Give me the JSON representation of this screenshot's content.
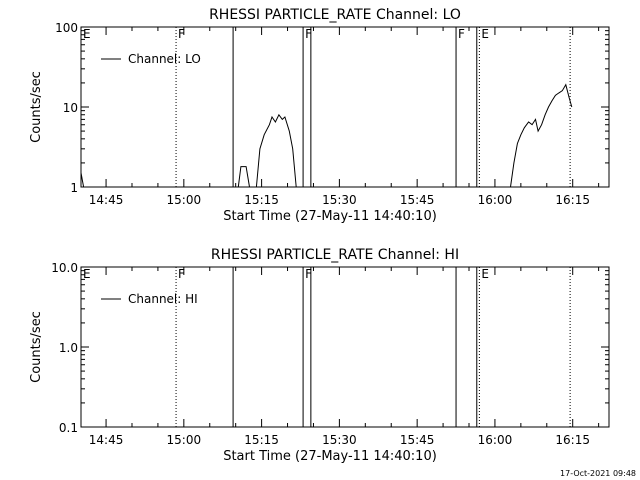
{
  "footer": {
    "timestamp": "17-Oct-2021 09:48"
  },
  "chart_data": [
    {
      "type": "line",
      "title": "RHESSI PARTICLE_RATE Channel: LO",
      "xlabel": "Start Time (27-May-11 14:40:10)",
      "ylabel": "Counts/sec",
      "yscale": "log",
      "ylim": [
        1,
        100
      ],
      "xlim": [
        "14:40:10",
        "16:22"
      ],
      "yticks": [
        "1",
        "10",
        "100"
      ],
      "xticks": [
        "14:45",
        "15:00",
        "15:15",
        "15:30",
        "15:45",
        "16:00",
        "16:15"
      ],
      "legend": {
        "label": "Channel: LO",
        "position": "top-left"
      },
      "markers": [
        {
          "label": "E",
          "time": "14:40:10",
          "style": "dotted"
        },
        {
          "label": "F",
          "time": "14:58:30",
          "style": "dotted"
        },
        {
          "label": "",
          "time": "15:09:30",
          "style": "solid"
        },
        {
          "label": "F",
          "time": "15:23:00",
          "style": "solid"
        },
        {
          "label": "",
          "time": "15:24:30",
          "style": "solid"
        },
        {
          "label": "F",
          "time": "15:52:30",
          "style": "solid"
        },
        {
          "label": "",
          "time": "15:56:30",
          "style": "solid"
        },
        {
          "label": "E",
          "time": "15:57:00",
          "style": "dotted"
        },
        {
          "label": "",
          "time": "16:14:30",
          "style": "dotted"
        }
      ],
      "series": [
        {
          "segments": [
            [
              [
                "14:40:10",
                1.5
              ],
              [
                "14:40:40",
                1
              ]
            ],
            [
              [
                "15:10:30",
                1
              ],
              [
                "15:11:00",
                1.8
              ],
              [
                "15:12:00",
                1.8
              ],
              [
                "15:12:40",
                1
              ]
            ],
            [
              [
                "15:14:00",
                1
              ],
              [
                "15:14:40",
                3
              ],
              [
                "15:15:30",
                4.5
              ],
              [
                "15:16:30",
                6
              ],
              [
                "15:17:00",
                7.5
              ],
              [
                "15:17:40",
                6.5
              ],
              [
                "15:18:20",
                8
              ],
              [
                "15:19:00",
                7
              ],
              [
                "15:19:30",
                7.5
              ],
              [
                "15:20:20",
                5
              ],
              [
                "15:21:00",
                3
              ],
              [
                "15:21:40",
                1
              ]
            ],
            [
              [
                "16:03:00",
                1
              ],
              [
                "16:03:40",
                2
              ],
              [
                "16:04:20",
                3.5
              ],
              [
                "16:05:00",
                4.5
              ],
              [
                "16:05:40",
                5.5
              ],
              [
                "16:06:30",
                6.5
              ],
              [
                "16:07:10",
                6
              ],
              [
                "16:07:50",
                7
              ],
              [
                "16:08:20",
                5
              ],
              [
                "16:09:00",
                6
              ],
              [
                "16:09:40",
                8
              ],
              [
                "16:10:20",
                10
              ],
              [
                "16:11:00",
                12
              ],
              [
                "16:11:40",
                14
              ],
              [
                "16:12:20",
                15
              ],
              [
                "16:13:00",
                16
              ],
              [
                "16:13:40",
                19
              ],
              [
                "16:14:20",
                13
              ],
              [
                "16:14:50",
                10
              ]
            ]
          ]
        }
      ]
    },
    {
      "type": "line",
      "title": "RHESSI PARTICLE_RATE Channel: HI",
      "xlabel": "Start Time (27-May-11 14:40:10)",
      "ylabel": "Counts/sec",
      "yscale": "log",
      "ylim": [
        0.1,
        10
      ],
      "xlim": [
        "14:40:10",
        "16:22"
      ],
      "yticks": [
        "0.1",
        "1.0",
        "10.0"
      ],
      "xticks": [
        "14:45",
        "15:00",
        "15:15",
        "15:30",
        "15:45",
        "16:00",
        "16:15"
      ],
      "legend": {
        "label": "Channel: HI",
        "position": "top-left"
      },
      "markers": [
        {
          "label": "E",
          "time": "14:40:10",
          "style": "dotted"
        },
        {
          "label": "F",
          "time": "14:58:30",
          "style": "dotted"
        },
        {
          "label": "",
          "time": "15:09:30",
          "style": "solid"
        },
        {
          "label": "F",
          "time": "15:23:00",
          "style": "solid"
        },
        {
          "label": "",
          "time": "15:24:30",
          "style": "solid"
        },
        {
          "label": "",
          "time": "15:52:30",
          "style": "solid"
        },
        {
          "label": "",
          "time": "15:56:30",
          "style": "solid"
        },
        {
          "label": "E",
          "time": "15:57:00",
          "style": "dotted"
        },
        {
          "label": "",
          "time": "16:14:30",
          "style": "dotted"
        }
      ],
      "series": [
        {
          "segments": []
        }
      ]
    }
  ]
}
